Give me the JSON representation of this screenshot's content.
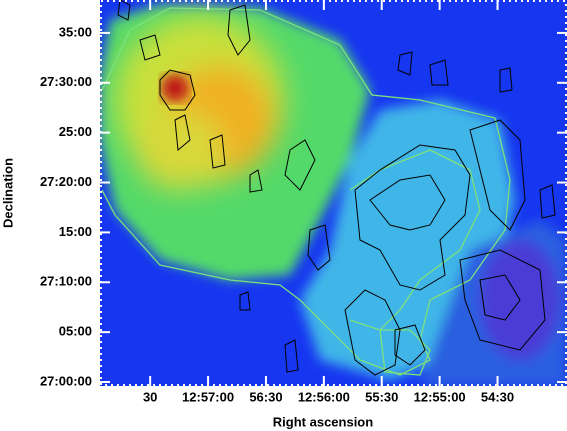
{
  "chart_data": {
    "type": "sky-map",
    "xlabel": "Right ascension",
    "ylabel": "Declination",
    "xlim": [
      3476,
      3234
    ],
    "xticks": [
      {
        "value": 3450,
        "label": "30"
      },
      {
        "value": 3420,
        "label": "12:57:00"
      },
      {
        "value": 3390,
        "label": "56:30"
      },
      {
        "value": 3360,
        "label": "12:56:00"
      },
      {
        "value": 3330,
        "label": "55:30"
      },
      {
        "value": 3300,
        "label": "12:55:00"
      },
      {
        "value": 3270,
        "label": "54:30"
      }
    ],
    "ylim": [
      -0.4,
      38.3
    ],
    "yticks": [
      {
        "value": 0,
        "label": "27:00:00"
      },
      {
        "value": 5,
        "label": "05:00"
      },
      {
        "value": 10,
        "label": "27:10:00"
      },
      {
        "value": 15,
        "label": "15:00"
      },
      {
        "value": 20,
        "label": "27:20:00"
      },
      {
        "value": 25,
        "label": "25:00"
      },
      {
        "value": 30,
        "label": "27:30:00"
      },
      {
        "value": 35,
        "label": "35:00"
      }
    ]
  }
}
